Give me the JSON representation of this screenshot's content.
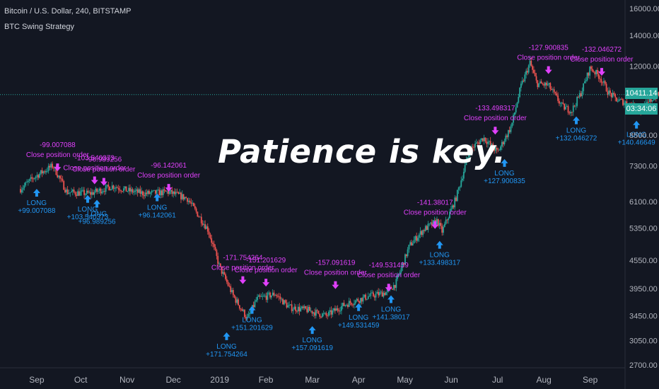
{
  "header": {
    "symbol": "Bitcoin / U.S. Dollar, 240, BITSTAMP",
    "strategy": "BTC Swing Strategy"
  },
  "overlay_text": "Patience is key.",
  "current_price": "10411.14",
  "countdown": "03:34:06",
  "colors": {
    "background": "#131722",
    "up_candle": "#26a69a",
    "down_candle": "#ef5350",
    "long_marker": "#2196f3",
    "close_marker": "#e040fb",
    "current_price": "#26a69a"
  },
  "chart_data": {
    "type": "candlestick",
    "title": "Bitcoin / U.S. Dollar, 240, BITSTAMP",
    "yscale": "log",
    "ylim": [
      2700,
      16000
    ],
    "y_ticks": [
      "16000.00",
      "14000.00",
      "12000.00",
      "10411.14",
      "8500.00",
      "7300.00",
      "6100.00",
      "5350.00",
      "4550.00",
      "3950.00",
      "3450.00",
      "3050.00",
      "2700.00"
    ],
    "x_ticks": [
      "Sep",
      "Oct",
      "Nov",
      "Dec",
      "2019",
      "Feb",
      "Mar",
      "Apr",
      "May",
      "Jun",
      "Jul",
      "Aug",
      "Sep"
    ],
    "price_path": [
      [
        0,
        6500
      ],
      [
        0.3,
        6900
      ],
      [
        0.7,
        7300
      ],
      [
        1.0,
        6400
      ],
      [
        1.5,
        6350
      ],
      [
        2.0,
        6600
      ],
      [
        2.3,
        6450
      ],
      [
        2.7,
        6350
      ],
      [
        3.2,
        6400
      ],
      [
        3.6,
        6200
      ],
      [
        4.05,
        5300
      ],
      [
        4.3,
        4400
      ],
      [
        4.6,
        3800
      ],
      [
        4.9,
        3400
      ],
      [
        5.1,
        3750
      ],
      [
        5.5,
        3850
      ],
      [
        5.8,
        3600
      ],
      [
        6.2,
        3550
      ],
      [
        6.6,
        3450
      ],
      [
        7.0,
        3650
      ],
      [
        7.5,
        3800
      ],
      [
        7.9,
        3880
      ],
      [
        8.1,
        4050
      ],
      [
        8.4,
        4900
      ],
      [
        8.7,
        5300
      ],
      [
        9.0,
        5550
      ],
      [
        9.1,
        5250
      ],
      [
        9.4,
        6200
      ],
      [
        9.7,
        7900
      ],
      [
        10.0,
        8400
      ],
      [
        10.3,
        7800
      ],
      [
        10.6,
        8900
      ],
      [
        10.8,
        10800
      ],
      [
        11.0,
        12200
      ],
      [
        11.15,
        11000
      ],
      [
        11.4,
        10900
      ],
      [
        11.7,
        9800
      ],
      [
        11.9,
        9600
      ],
      [
        12.1,
        10500
      ],
      [
        12.3,
        11900
      ],
      [
        12.5,
        11400
      ],
      [
        12.7,
        10500
      ],
      [
        12.9,
        10100
      ],
      [
        13.1,
        10000
      ],
      [
        13.4,
        9600
      ],
      [
        13.7,
        10350
      ],
      [
        13.9,
        10411
      ]
    ],
    "current_price": 10411.14,
    "orders": [
      {
        "type": "LONG",
        "label": "LONG",
        "value": "+99.007088",
        "t": 0.35,
        "p": 6550
      },
      {
        "type": "CLOSE",
        "label": "Close position order",
        "value": "-99.007088",
        "t": 0.8,
        "p": 7200
      },
      {
        "type": "LONG",
        "label": "LONG",
        "value": "+103.540373",
        "t": 1.45,
        "p": 6350
      },
      {
        "type": "CLOSE",
        "label": "Close position order",
        "value": "-103.540373",
        "t": 1.6,
        "p": 6750
      },
      {
        "type": "LONG",
        "label": "LONG",
        "value": "+96.989256",
        "t": 1.65,
        "p": 6200
      },
      {
        "type": "CLOSE",
        "label": "Close position order",
        "value": "-96.989256",
        "t": 1.8,
        "p": 6700
      },
      {
        "type": "LONG",
        "label": "LONG",
        "value": "+96.142061",
        "t": 2.95,
        "p": 6400
      },
      {
        "type": "CLOSE",
        "label": "Close position order",
        "value": "-96.142061",
        "t": 3.2,
        "p": 6500
      },
      {
        "type": "LONG",
        "label": "LONG",
        "value": "+171.754264",
        "t": 4.45,
        "p": 3200
      },
      {
        "type": "CLOSE",
        "label": "Close position order",
        "value": "-171.754264",
        "t": 4.8,
        "p": 4100
      },
      {
        "type": "LONG",
        "label": "LONG",
        "value": "+151.201629",
        "t": 5.0,
        "p": 3650
      },
      {
        "type": "CLOSE",
        "label": "Close position order",
        "value": "-151.201629",
        "t": 5.3,
        "p": 4050
      },
      {
        "type": "LONG",
        "label": "LONG",
        "value": "+157.091619",
        "t": 6.3,
        "p": 3300
      },
      {
        "type": "CLOSE",
        "label": "Close position order",
        "value": "-157.091619",
        "t": 6.8,
        "p": 4000
      },
      {
        "type": "LONG",
        "label": "LONG",
        "value": "+149.531459",
        "t": 7.3,
        "p": 3700
      },
      {
        "type": "CLOSE",
        "label": "Close position order",
        "value": "-149.531459",
        "t": 7.95,
        "p": 3950
      },
      {
        "type": "LONG",
        "label": "LONG",
        "value": "+141.38017",
        "t": 8.0,
        "p": 3850
      },
      {
        "type": "CLOSE",
        "label": "Close position order",
        "value": "-141.38017",
        "t": 8.95,
        "p": 5400
      },
      {
        "type": "LONG",
        "label": "LONG",
        "value": "+133.498317",
        "t": 9.05,
        "p": 5050
      },
      {
        "type": "CLOSE",
        "label": "Close position order",
        "value": "-133.498317",
        "t": 10.25,
        "p": 8650
      },
      {
        "type": "LONG",
        "label": "LONG",
        "value": "+127.900835",
        "t": 10.45,
        "p": 7600
      },
      {
        "type": "CLOSE",
        "label": "Close position order",
        "value": "-127.900835",
        "t": 11.4,
        "p": 11700
      },
      {
        "type": "LONG",
        "label": "LONG",
        "value": "+132.046272",
        "t": 12.0,
        "p": 9400
      },
      {
        "type": "CLOSE",
        "label": "Close position order",
        "value": "-132.046272",
        "t": 12.55,
        "p": 11600
      },
      {
        "type": "LONG",
        "label": "LONG",
        "value": "+140.46649",
        "t": 13.3,
        "p": 9200
      }
    ]
  }
}
